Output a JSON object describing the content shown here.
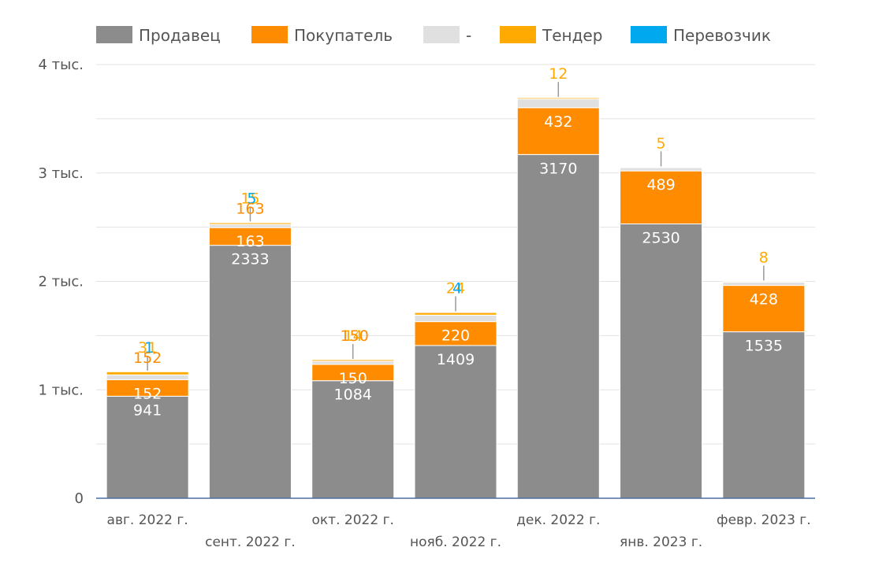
{
  "chart_data": {
    "type": "bar",
    "stacked": true,
    "categories": [
      "авг. 2022 г.",
      "сент. 2022 г.",
      "окт. 2022 г.",
      "нояб. 2022 г.",
      "дек. 2022 г.",
      "янв. 2023 г.",
      "февр. 2023 г."
    ],
    "series": [
      {
        "name": "Продавец",
        "color": "#8c8c8c",
        "values": [
          941,
          2333,
          1084,
          1409,
          3170,
          2530,
          1535
        ]
      },
      {
        "name": "Покупатель",
        "color": "#ff8c00",
        "values": [
          152,
          163,
          150,
          220,
          432,
          489,
          428
        ]
      },
      {
        "name": "-",
        "color": "#e0e0e0",
        "values": [
          45,
          30,
          30,
          60,
          80,
          30,
          30
        ]
      },
      {
        "name": "Тендер",
        "color": "#ffaa00",
        "values": [
          31,
          15,
          14,
          24,
          12,
          5,
          8
        ]
      },
      {
        "name": "Перевозчик",
        "color": "#00a8f0",
        "values": [
          1,
          5,
          0,
          4,
          0,
          0,
          0
        ]
      }
    ],
    "outside_labels": [
      {
        "category_index": 0,
        "texts": [
          {
            "text": "31",
            "series": "Тендер"
          },
          {
            "text": "1",
            "series": "Перевозчик"
          },
          {
            "text": "152",
            "series": "Покупатель"
          }
        ]
      },
      {
        "category_index": 1,
        "texts": [
          {
            "text": "15",
            "series": "Тендер"
          },
          {
            "text": "5",
            "series": "Перевозчик"
          },
          {
            "text": "163",
            "series": "Покупатель"
          }
        ]
      },
      {
        "category_index": 2,
        "texts": [
          {
            "text": "14",
            "series": "Тендер"
          },
          {
            "text": "150",
            "series": "Покупатель"
          }
        ]
      },
      {
        "category_index": 3,
        "texts": [
          {
            "text": "24",
            "series": "Тендер"
          },
          {
            "text": "4",
            "series": "Перевозчик"
          }
        ]
      },
      {
        "category_index": 4,
        "texts": [
          {
            "text": "12",
            "series": "Тендер"
          }
        ]
      },
      {
        "category_index": 5,
        "texts": [
          {
            "text": "5",
            "series": "Тендер"
          }
        ]
      },
      {
        "category_index": 6,
        "texts": [
          {
            "text": "8",
            "series": "Тендер"
          }
        ]
      }
    ],
    "inside_label_series": [
      "Продавец",
      "Покупатель"
    ],
    "ylim": [
      0,
      4000
    ],
    "yticks": [
      {
        "value": 0,
        "label": "0"
      },
      {
        "value": 1000,
        "label": "1 тыс."
      },
      {
        "value": 2000,
        "label": "2 тыс."
      },
      {
        "value": 3000,
        "label": "3 тыс."
      },
      {
        "value": 4000,
        "label": "4 тыс."
      }
    ],
    "grid": true,
    "legend_position": "top",
    "axis_color": "#4a6fa5"
  }
}
